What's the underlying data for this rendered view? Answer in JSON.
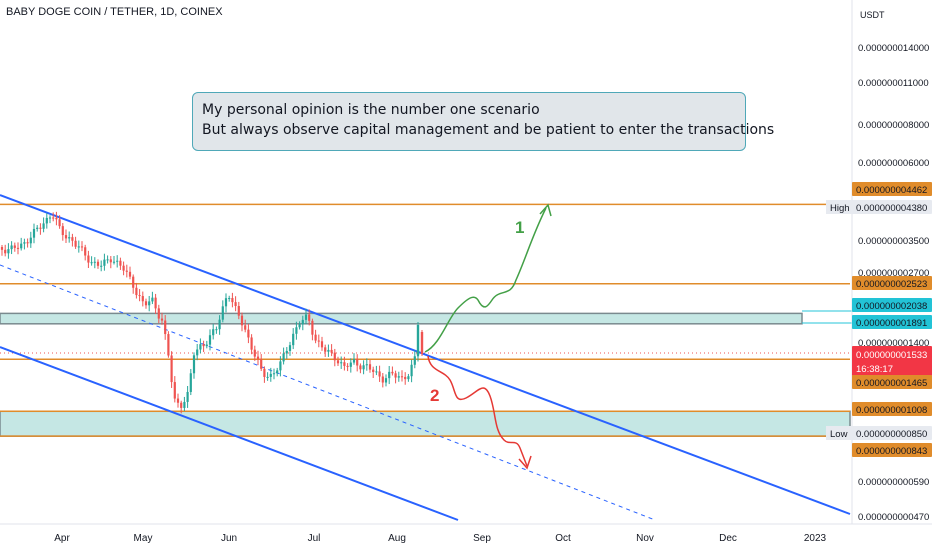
{
  "header": {
    "title": "BABY DOGE COIN / TETHER, 1D, COINEX"
  },
  "note": {
    "line1": "My personal opinion is the number one scenario",
    "line2": "But always observe capital management and be patient to enter the transactions"
  },
  "annotations": {
    "scenario1": "1",
    "scenario2": "2"
  },
  "chart_data": {
    "type": "candlestick",
    "title": "BABY DOGE COIN / TETHER, 1D, COINEX",
    "ylabel": "USDT",
    "y_scale": "log",
    "x_ticks": [
      "Apr",
      "May",
      "Jun",
      "Jul",
      "Aug",
      "Sep",
      "Oct",
      "Nov",
      "Dec",
      "2023"
    ],
    "y_ticks": [
      "0.000000014000",
      "0.000000011000",
      "0.000000008000",
      "0.000000006000",
      "0.000000003500",
      "0.000000002700",
      "0.000000001400",
      "0.000000000590",
      "0.000000000470"
    ],
    "price_labels": [
      {
        "text": "0.000000004462",
        "style": "orange"
      },
      {
        "text": "0.000000004380",
        "style": "light",
        "tag": "High"
      },
      {
        "text": "0.000000002523",
        "style": "orange"
      },
      {
        "text": "0.000000002038",
        "style": "teal"
      },
      {
        "text": "0.000000001891",
        "style": "teal"
      },
      {
        "text": "0.000000001533",
        "style": "red",
        "sub": "16:38:17"
      },
      {
        "text": "0.000000001465",
        "style": "orange"
      },
      {
        "text": "0.000000001008",
        "style": "orange"
      },
      {
        "text": "0.000000000850",
        "style": "light",
        "tag": "Low"
      },
      {
        "text": "0.000000000843",
        "style": "orange"
      }
    ],
    "levels": [
      4.462e-09,
      2.523e-09,
      1.465e-09,
      1.008e-09,
      8.43e-10
    ],
    "zones": [
      [
        1.891e-09,
        2.038e-09
      ],
      [
        8.43e-10,
        1.008e-09
      ]
    ],
    "last_price": 1.533e-09,
    "colors": {
      "up": "#26a69a",
      "down": "#ef5350",
      "channel": "#2962ff",
      "level": "#e08c2b",
      "zone": "#b2dfdb",
      "path1": "#43a047",
      "path2": "#e53935"
    }
  }
}
